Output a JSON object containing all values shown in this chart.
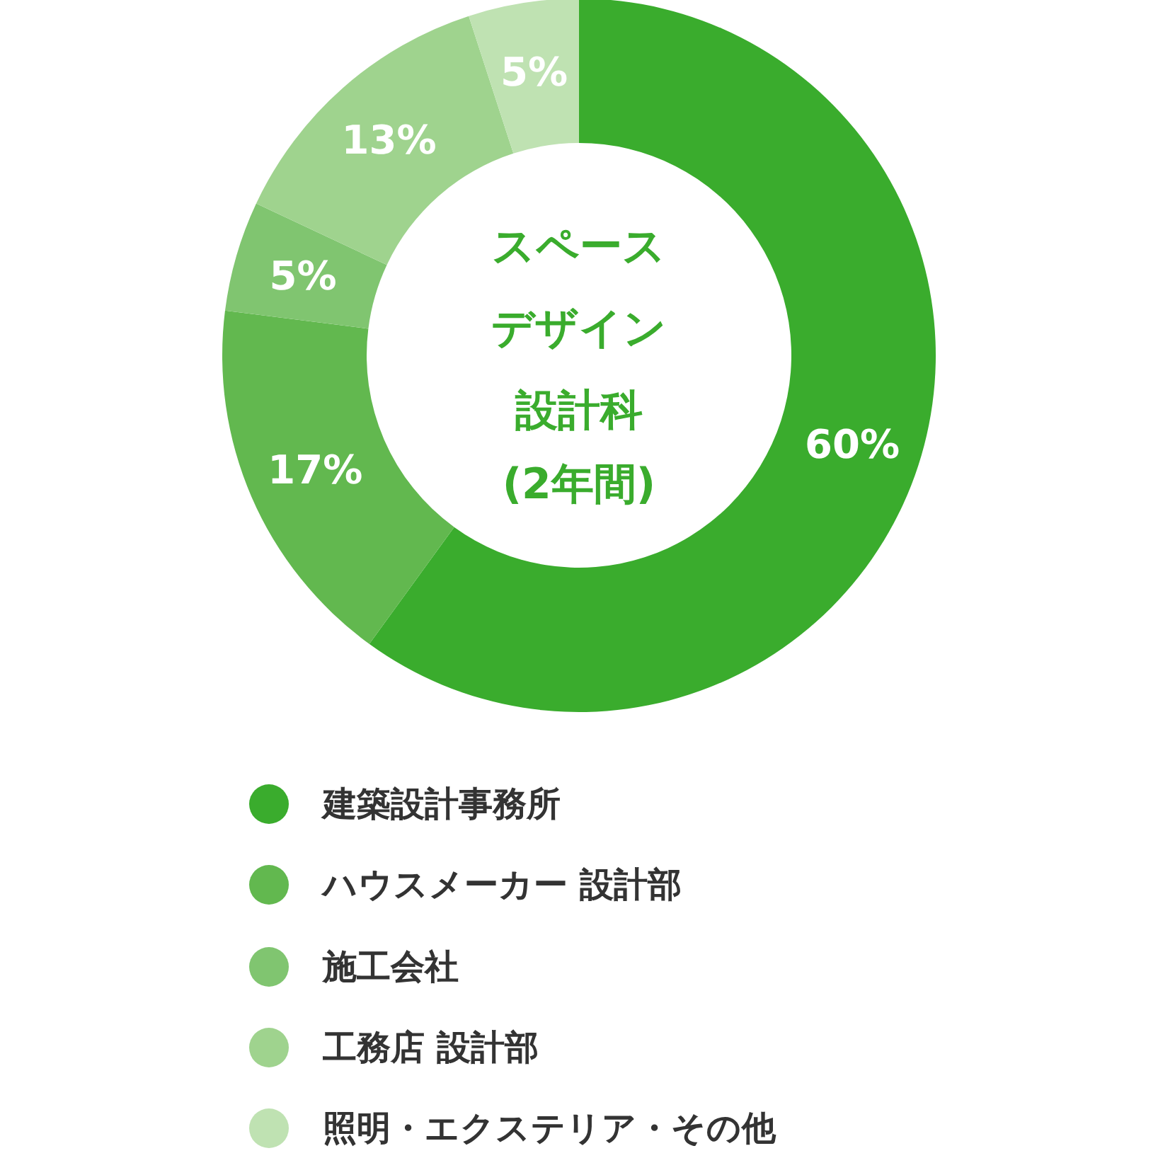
{
  "chart_data": {
    "type": "donut",
    "title": "スペースデザイン設計科",
    "subtitle": "(2年間)",
    "categories": [
      "建築設計事務所",
      "ハウスメーカー 設計部",
      "施工会社",
      "工務店 設計部",
      "照明・エクステリア・その他"
    ],
    "values": [
      60,
      17,
      5,
      13,
      5
    ],
    "colors": [
      "#3aac2d",
      "#62b84f",
      "#80c570",
      "#9fd38e",
      "#bfe2b2"
    ],
    "value_labels": [
      "60%",
      "17%",
      "5%",
      "13%",
      "5%"
    ],
    "legend": "bottom"
  }
}
